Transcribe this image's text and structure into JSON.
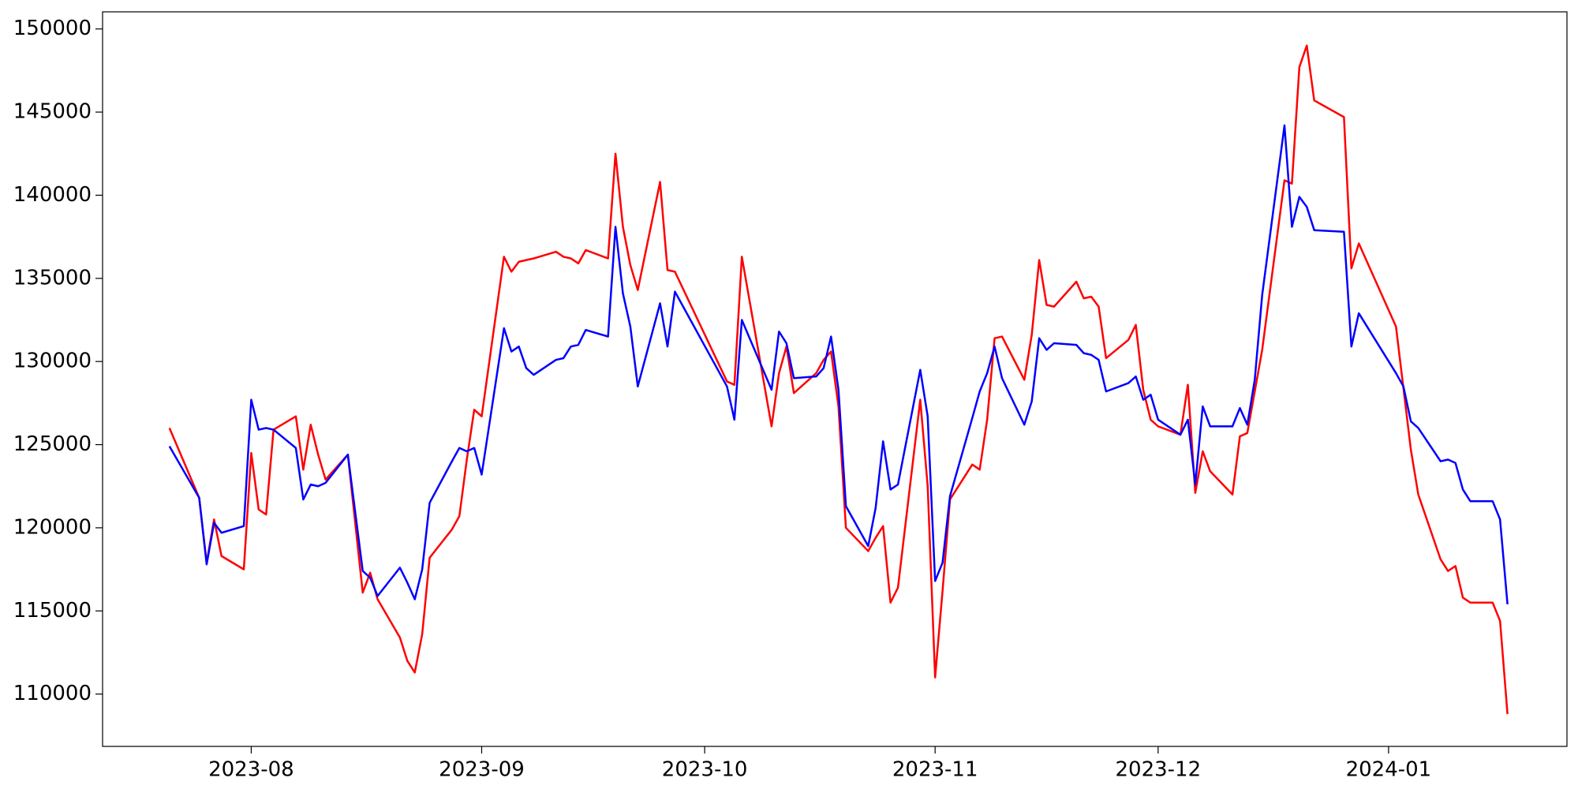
{
  "chart_data": {
    "type": "line",
    "x": [
      "2023-07-21",
      "2023-07-25",
      "2023-07-26",
      "2023-07-27",
      "2023-07-28",
      "2023-07-31",
      "2023-08-01",
      "2023-08-02",
      "2023-08-03",
      "2023-08-04",
      "2023-08-07",
      "2023-08-08",
      "2023-08-09",
      "2023-08-10",
      "2023-08-11",
      "2023-08-14",
      "2023-08-16",
      "2023-08-17",
      "2023-08-18",
      "2023-08-21",
      "2023-08-22",
      "2023-08-23",
      "2023-08-24",
      "2023-08-25",
      "2023-08-28",
      "2023-08-29",
      "2023-08-30",
      "2023-08-31",
      "2023-09-01",
      "2023-09-04",
      "2023-09-05",
      "2023-09-06",
      "2023-09-07",
      "2023-09-08",
      "2023-09-11",
      "2023-09-12",
      "2023-09-13",
      "2023-09-14",
      "2023-09-15",
      "2023-09-18",
      "2023-09-19",
      "2023-09-20",
      "2023-09-21",
      "2023-09-22",
      "2023-09-25",
      "2023-09-26",
      "2023-09-27",
      "2023-10-04",
      "2023-10-05",
      "2023-10-06",
      "2023-10-10",
      "2023-10-11",
      "2023-10-12",
      "2023-10-13",
      "2023-10-16",
      "2023-10-17",
      "2023-10-18",
      "2023-10-19",
      "2023-10-20",
      "2023-10-23",
      "2023-10-24",
      "2023-10-25",
      "2023-10-26",
      "2023-10-27",
      "2023-10-30",
      "2023-10-31",
      "2023-11-01",
      "2023-11-02",
      "2023-11-03",
      "2023-11-06",
      "2023-11-07",
      "2023-11-08",
      "2023-11-09",
      "2023-11-10",
      "2023-11-13",
      "2023-11-14",
      "2023-11-15",
      "2023-11-16",
      "2023-11-17",
      "2023-11-20",
      "2023-11-21",
      "2023-11-22",
      "2023-11-23",
      "2023-11-24",
      "2023-11-27",
      "2023-11-28",
      "2023-11-29",
      "2023-11-30",
      "2023-12-01",
      "2023-12-04",
      "2023-12-05",
      "2023-12-06",
      "2023-12-07",
      "2023-12-08",
      "2023-12-11",
      "2023-12-12",
      "2023-12-13",
      "2023-12-14",
      "2023-12-15",
      "2023-12-18",
      "2023-12-19",
      "2023-12-20",
      "2023-12-21",
      "2023-12-22",
      "2023-12-26",
      "2023-12-27",
      "2023-12-28",
      "2024-01-02",
      "2024-01-03",
      "2024-01-04",
      "2024-01-05",
      "2024-01-08",
      "2024-01-09",
      "2024-01-10",
      "2024-01-11",
      "2024-01-12",
      "2024-01-15",
      "2024-01-16",
      "2024-01-17"
    ],
    "series": [
      {
        "color": "#ff0000",
        "values": [
          126000,
          121800,
          117900,
          120500,
          118300,
          117500,
          124500,
          121100,
          120800,
          125900,
          126700,
          123500,
          126200,
          124400,
          122900,
          124400,
          116100,
          117300,
          115700,
          113400,
          112000,
          111300,
          113600,
          118200,
          119900,
          120700,
          124100,
          127100,
          126700,
          136300,
          135400,
          136000,
          136100,
          136200,
          136600,
          136300,
          136200,
          135900,
          136700,
          136200,
          142500,
          138100,
          135800,
          134300,
          140800,
          135500,
          135400,
          128800,
          128600,
          136300,
          126100,
          129300,
          130900,
          128100,
          129300,
          130100,
          130600,
          127300,
          120000,
          118600,
          119400,
          120100,
          115500,
          116400,
          127700,
          122500,
          111000,
          116200,
          121700,
          123800,
          123500,
          126500,
          131400,
          131500,
          128900,
          131600,
          136100,
          133400,
          133300,
          134800,
          133800,
          133900,
          133300,
          130200,
          131300,
          132200,
          128300,
          126500,
          126100,
          125600,
          128600,
          122100,
          124600,
          123400,
          122000,
          125500,
          125700,
          128200,
          130700,
          140900,
          140700,
          147700,
          149000,
          145700,
          144700,
          135600,
          137100,
          132100,
          128400,
          124700,
          122000,
          118100,
          117400,
          117700,
          115800,
          115500,
          115500,
          114400,
          108800
        ]
      },
      {
        "color": "#0000ff",
        "values": [
          124900,
          121800,
          117800,
          120300,
          119700,
          120100,
          127700,
          125900,
          126000,
          125900,
          124800,
          121700,
          122600,
          122500,
          122700,
          124400,
          117400,
          117000,
          115900,
          117600,
          116700,
          115700,
          117500,
          121500,
          124000,
          124800,
          124600,
          124800,
          123200,
          132000,
          130600,
          130900,
          129600,
          129200,
          130100,
          130200,
          130900,
          131000,
          131900,
          131500,
          138100,
          134100,
          132100,
          128500,
          133500,
          130900,
          134200,
          128500,
          126500,
          132500,
          128300,
          131800,
          131100,
          129000,
          129100,
          129600,
          131500,
          128300,
          121300,
          118900,
          121200,
          125200,
          122300,
          122600,
          129500,
          126700,
          116800,
          117900,
          121900,
          126600,
          128200,
          129300,
          130900,
          129000,
          126200,
          127600,
          131400,
          130700,
          131100,
          131000,
          130500,
          130400,
          130100,
          128200,
          128700,
          129100,
          127700,
          128000,
          126500,
          125600,
          126500,
          122600,
          127300,
          126100,
          126100,
          127200,
          126200,
          128900,
          134000,
          144200,
          138100,
          139900,
          139300,
          137900,
          137800,
          130900,
          132900,
          129300,
          128500,
          126400,
          126000,
          124000,
          124100,
          123900,
          122300,
          121600,
          121600,
          120500,
          115400
        ]
      }
    ],
    "xlim": [
      "2023-07-12",
      "2024-01-25"
    ],
    "xticks": [
      {
        "value": "2023-08-01",
        "label": "2023-08"
      },
      {
        "value": "2023-09-01",
        "label": "2023-09"
      },
      {
        "value": "2023-10-01",
        "label": "2023-10"
      },
      {
        "value": "2023-11-01",
        "label": "2023-11"
      },
      {
        "value": "2023-12-01",
        "label": "2023-12"
      },
      {
        "value": "2024-01-01",
        "label": "2024-01"
      }
    ],
    "ylim": [
      106853,
      151029
    ],
    "yticks": [
      110000,
      115000,
      120000,
      125000,
      130000,
      135000,
      140000,
      145000,
      150000
    ],
    "grid": false
  }
}
